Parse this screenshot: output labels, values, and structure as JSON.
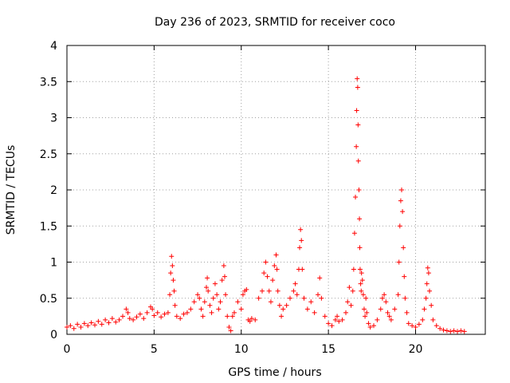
{
  "chart_data": {
    "type": "scatter",
    "title": "Day 236 of 2023, SRMTID for receiver coco",
    "xlabel": "GPS time / hours",
    "ylabel": "SRMTID / TECUs",
    "xlim": [
      0,
      24
    ],
    "ylim": [
      0,
      4
    ],
    "x_ticks": [
      0,
      5,
      10,
      15,
      20
    ],
    "y_ticks": [
      0,
      0.5,
      1,
      1.5,
      2,
      2.5,
      3,
      3.5,
      4
    ],
    "x_tick_labels": [
      "0",
      "5",
      "10",
      "15",
      "20"
    ],
    "y_tick_labels": [
      "0",
      "0.5",
      "1",
      "1.5",
      "2",
      "2.5",
      "3",
      "3.5",
      "4"
    ],
    "grid": true,
    "marker": "+",
    "color": "#ff0000",
    "series": [
      {
        "name": "SRMTID",
        "x": [
          0.0,
          0.2,
          0.4,
          0.6,
          0.8,
          1.0,
          1.2,
          1.4,
          1.6,
          1.8,
          2.0,
          2.2,
          2.4,
          2.6,
          2.8,
          3.0,
          3.2,
          3.4,
          3.5,
          3.6,
          3.8,
          4.0,
          4.2,
          4.4,
          4.6,
          4.8,
          4.9,
          5.0,
          5.2,
          5.4,
          5.6,
          5.8,
          5.9,
          5.95,
          6.0,
          6.05,
          6.1,
          6.15,
          6.2,
          6.3,
          6.5,
          6.7,
          6.9,
          7.1,
          7.3,
          7.5,
          7.6,
          7.7,
          7.8,
          7.9,
          8.0,
          8.05,
          8.1,
          8.2,
          8.3,
          8.4,
          8.5,
          8.6,
          8.7,
          8.8,
          8.9,
          9.0,
          9.05,
          9.1,
          9.2,
          9.3,
          9.4,
          9.5,
          9.6,
          9.8,
          10.0,
          10.1,
          10.2,
          10.3,
          10.4,
          10.5,
          10.6,
          10.8,
          11.0,
          11.2,
          11.3,
          11.4,
          11.5,
          11.6,
          11.7,
          11.8,
          11.9,
          12.0,
          12.05,
          12.1,
          12.2,
          12.3,
          12.4,
          12.6,
          12.8,
          13.0,
          13.1,
          13.2,
          13.3,
          13.35,
          13.4,
          13.45,
          13.5,
          13.6,
          13.8,
          14.0,
          14.2,
          14.4,
          14.5,
          14.6,
          14.8,
          15.0,
          15.2,
          15.4,
          15.5,
          15.6,
          15.8,
          16.0,
          16.1,
          16.2,
          16.3,
          16.4,
          16.45,
          16.5,
          16.55,
          16.6,
          16.62,
          16.65,
          16.68,
          16.7,
          16.72,
          16.75,
          16.78,
          16.8,
          16.82,
          16.85,
          16.88,
          16.9,
          16.95,
          17.0,
          17.05,
          17.1,
          17.15,
          17.2,
          17.3,
          17.4,
          17.6,
          17.8,
          18.0,
          18.1,
          18.2,
          18.3,
          18.4,
          18.5,
          18.6,
          18.8,
          19.0,
          19.05,
          19.1,
          19.15,
          19.2,
          19.25,
          19.3,
          19.35,
          19.4,
          19.5,
          19.6,
          19.8,
          20.0,
          20.2,
          20.4,
          20.5,
          20.6,
          20.65,
          20.7,
          20.75,
          20.8,
          20.9,
          21.0,
          21.2,
          21.4,
          21.6,
          21.8,
          22.0,
          22.2,
          22.4,
          22.6,
          22.8
        ],
        "y": [
          0.1,
          0.12,
          0.08,
          0.14,
          0.1,
          0.15,
          0.12,
          0.16,
          0.13,
          0.18,
          0.14,
          0.2,
          0.16,
          0.22,
          0.17,
          0.2,
          0.25,
          0.35,
          0.3,
          0.22,
          0.2,
          0.24,
          0.28,
          0.22,
          0.3,
          0.38,
          0.35,
          0.26,
          0.3,
          0.24,
          0.28,
          0.3,
          0.55,
          0.85,
          1.08,
          0.95,
          0.75,
          0.6,
          0.4,
          0.25,
          0.22,
          0.28,
          0.3,
          0.35,
          0.45,
          0.55,
          0.5,
          0.35,
          0.25,
          0.45,
          0.65,
          0.78,
          0.6,
          0.4,
          0.3,
          0.5,
          0.7,
          0.55,
          0.35,
          0.45,
          0.75,
          0.95,
          0.8,
          0.55,
          0.25,
          0.1,
          0.05,
          0.25,
          0.3,
          0.45,
          0.35,
          0.55,
          0.6,
          0.62,
          0.2,
          0.18,
          0.22,
          0.2,
          0.5,
          0.6,
          0.85,
          1.0,
          0.8,
          0.6,
          0.45,
          0.75,
          0.95,
          1.1,
          0.9,
          0.6,
          0.4,
          0.25,
          0.35,
          0.4,
          0.5,
          0.6,
          0.7,
          0.55,
          0.9,
          1.2,
          1.45,
          1.3,
          0.9,
          0.5,
          0.35,
          0.45,
          0.3,
          0.55,
          0.78,
          0.5,
          0.25,
          0.15,
          0.12,
          0.2,
          0.25,
          0.18,
          0.2,
          0.3,
          0.45,
          0.65,
          0.4,
          0.6,
          0.9,
          1.4,
          1.9,
          2.6,
          3.1,
          3.54,
          3.42,
          2.9,
          2.4,
          2.0,
          1.6,
          1.2,
          0.9,
          0.7,
          0.6,
          0.85,
          0.75,
          0.55,
          0.35,
          0.25,
          0.5,
          0.3,
          0.15,
          0.1,
          0.12,
          0.2,
          0.35,
          0.5,
          0.55,
          0.45,
          0.3,
          0.25,
          0.2,
          0.35,
          0.55,
          1.0,
          1.5,
          1.85,
          2.0,
          1.7,
          1.2,
          0.8,
          0.5,
          0.3,
          0.15,
          0.12,
          0.1,
          0.14,
          0.2,
          0.35,
          0.5,
          0.7,
          0.92,
          0.85,
          0.6,
          0.4,
          0.2,
          0.12,
          0.08,
          0.06,
          0.05,
          0.04,
          0.05,
          0.04,
          0.05,
          0.04
        ]
      }
    ]
  }
}
